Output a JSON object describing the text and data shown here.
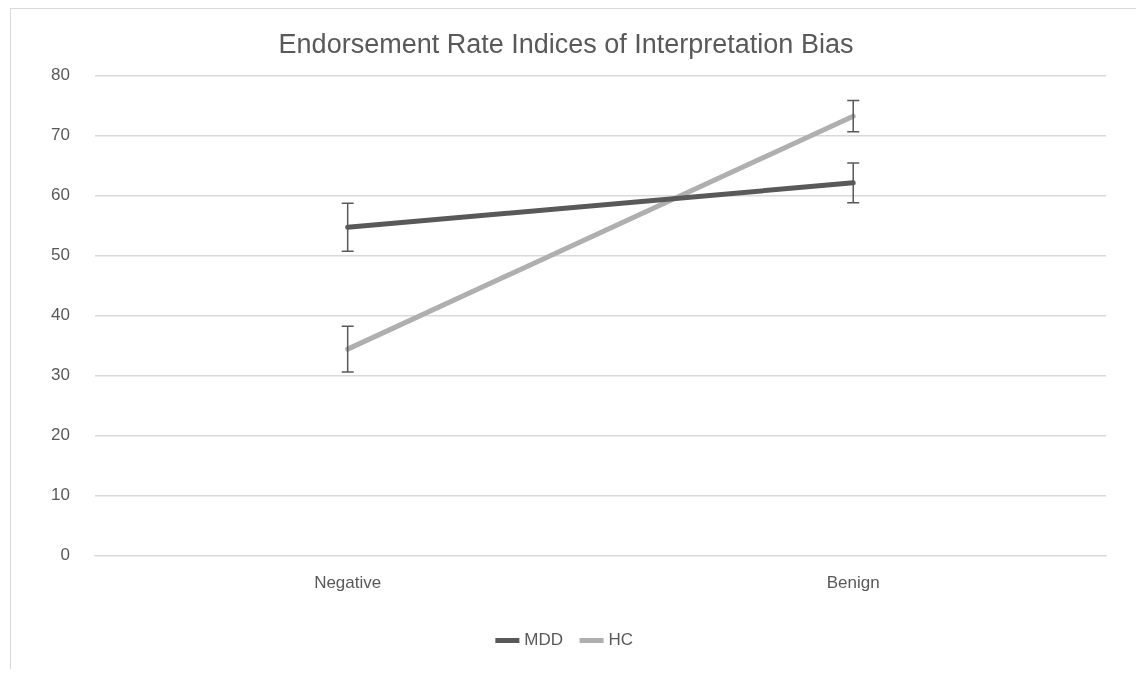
{
  "chart_data": {
    "type": "line",
    "title": "Endorsement Rate Indices of Interpretation Bias",
    "categories": [
      "Negative",
      "Benign"
    ],
    "series": [
      {
        "name": "MDD",
        "color": "#595959",
        "values": [
          54.7,
          62.1
        ],
        "errors": [
          4.0,
          3.3
        ]
      },
      {
        "name": "HC",
        "color": "#afafaf",
        "values": [
          34.4,
          73.2
        ],
        "errors": [
          3.8,
          2.6
        ]
      }
    ],
    "ylim": [
      0,
      80
    ],
    "yticks": [
      0,
      10,
      20,
      30,
      40,
      50,
      60,
      70,
      80
    ],
    "grid": "y",
    "legend": "bottom",
    "marker": "none",
    "line_style": "solid"
  }
}
